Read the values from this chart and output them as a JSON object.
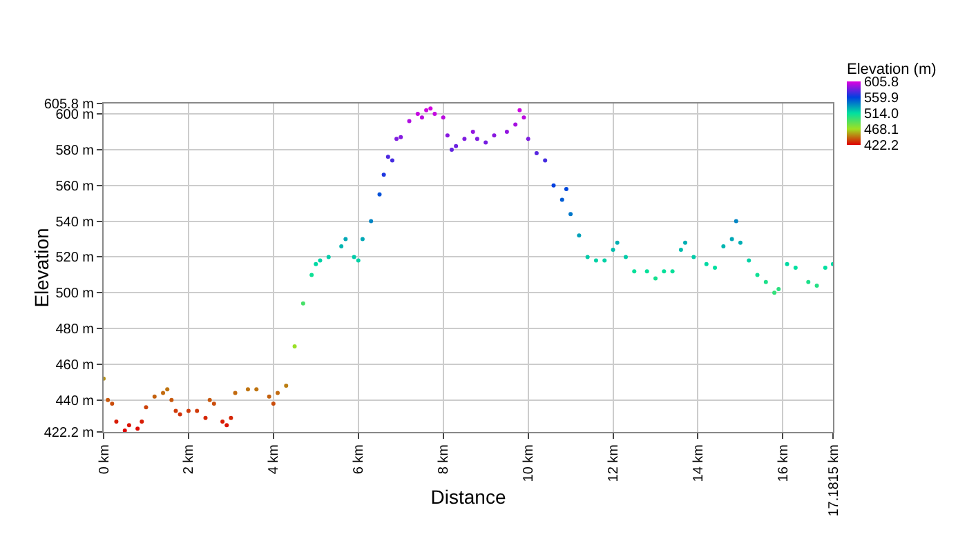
{
  "chart_data": {
    "type": "scatter",
    "xlabel": "Distance",
    "ylabel": "Elevation",
    "clabel": "Elevation (m)",
    "x": [
      0,
      0.1,
      0.2,
      0.3,
      0.5,
      0.6,
      0.8,
      0.9,
      1.0,
      1.2,
      1.4,
      1.5,
      1.6,
      1.7,
      1.8,
      2.0,
      2.2,
      2.4,
      2.5,
      2.6,
      2.8,
      2.9,
      3.0,
      3.1,
      3.4,
      3.6,
      3.9,
      4.0,
      4.1,
      4.3,
      4.5,
      4.7,
      4.9,
      5.0,
      5.1,
      5.3,
      5.6,
      5.7,
      5.9,
      6.0,
      6.1,
      6.3,
      6.5,
      6.6,
      6.7,
      6.8,
      6.9,
      7.0,
      7.2,
      7.4,
      7.5,
      7.6,
      7.7,
      7.8,
      8.0,
      8.1,
      8.2,
      8.3,
      8.5,
      8.7,
      8.8,
      9.0,
      9.2,
      9.5,
      9.7,
      9.8,
      9.9,
      10.0,
      10.2,
      10.4,
      10.6,
      10.8,
      10.9,
      11.0,
      11.2,
      11.4,
      11.6,
      11.8,
      12.0,
      12.1,
      12.3,
      12.5,
      12.8,
      13.0,
      13.2,
      13.4,
      13.6,
      13.7,
      13.9,
      14.2,
      14.4,
      14.6,
      14.8,
      14.9,
      15.0,
      15.2,
      15.4,
      15.6,
      15.8,
      15.9,
      16.1,
      16.3,
      16.6,
      16.8,
      17.0,
      17.18
    ],
    "values": [
      452,
      440,
      438,
      428,
      423,
      426,
      424,
      428,
      436,
      442,
      444,
      446,
      440,
      434,
      432,
      434,
      434,
      430,
      440,
      438,
      428,
      426,
      430,
      444,
      446,
      446,
      442,
      438,
      444,
      448,
      470,
      494,
      510,
      516,
      518,
      520,
      526,
      530,
      520,
      518,
      530,
      540,
      555,
      566,
      576,
      574,
      586,
      587,
      596,
      600,
      598,
      602,
      603,
      600,
      598,
      588,
      580,
      582,
      586,
      590,
      586,
      584,
      588,
      590,
      594,
      602,
      598,
      586,
      578,
      574,
      560,
      552,
      558,
      544,
      532,
      520,
      518,
      518,
      524,
      528,
      520,
      512,
      512,
      508,
      512,
      512,
      524,
      528,
      520,
      516,
      514,
      526,
      530,
      540,
      528,
      518,
      510,
      506,
      500,
      502,
      516,
      514,
      506,
      504,
      514,
      516
    ],
    "cvalues": [
      452,
      440,
      438,
      428,
      423,
      426,
      424,
      428,
      436,
      442,
      444,
      446,
      440,
      434,
      432,
      434,
      434,
      430,
      440,
      438,
      428,
      426,
      430,
      444,
      446,
      446,
      442,
      438,
      444,
      448,
      470,
      494,
      510,
      516,
      518,
      520,
      526,
      530,
      520,
      518,
      530,
      540,
      555,
      566,
      576,
      574,
      586,
      587,
      596,
      600,
      598,
      602,
      603,
      600,
      598,
      588,
      580,
      582,
      586,
      590,
      586,
      584,
      588,
      590,
      594,
      602,
      598,
      586,
      578,
      574,
      560,
      552,
      558,
      544,
      532,
      520,
      518,
      518,
      524,
      528,
      520,
      512,
      512,
      508,
      512,
      512,
      524,
      528,
      520,
      516,
      514,
      526,
      530,
      540,
      528,
      518,
      510,
      506,
      500,
      502,
      516,
      514,
      506,
      504,
      514,
      516
    ],
    "marker": "circle",
    "xlim": [
      0,
      17.1815
    ],
    "xticks": [
      {
        "value": 0,
        "label": "0 km"
      },
      {
        "value": 2,
        "label": "2 km"
      },
      {
        "value": 4,
        "label": "4 km"
      },
      {
        "value": 6,
        "label": "6 km"
      },
      {
        "value": 8,
        "label": "8 km"
      },
      {
        "value": 10,
        "label": "10 km"
      },
      {
        "value": 12,
        "label": "12 km"
      },
      {
        "value": 14,
        "label": "14 km"
      },
      {
        "value": 16,
        "label": "16 km"
      },
      {
        "value": 17.1815,
        "label": "17.1815 km"
      }
    ],
    "ylim": [
      422.2,
      605.8
    ],
    "yticks": [
      {
        "value": 422.2,
        "label": "422.2 m"
      },
      {
        "value": 440,
        "label": "440 m"
      },
      {
        "value": 460,
        "label": "460 m"
      },
      {
        "value": 480,
        "label": "480 m"
      },
      {
        "value": 500,
        "label": "500 m"
      },
      {
        "value": 520,
        "label": "520 m"
      },
      {
        "value": 540,
        "label": "540 m"
      },
      {
        "value": 560,
        "label": "560 m"
      },
      {
        "value": 580,
        "label": "580 m"
      },
      {
        "value": 600,
        "label": "600 m"
      },
      {
        "value": 605.8,
        "label": "605.8 m"
      }
    ],
    "clim": [
      422.2,
      605.8
    ],
    "cticks": [
      {
        "value": 605.8,
        "label": "605.8"
      },
      {
        "value": 559.9,
        "label": "559.9"
      },
      {
        "value": 514.0,
        "label": "514.0"
      },
      {
        "value": 468.1,
        "label": "468.1"
      },
      {
        "value": 422.2,
        "label": "422.2"
      }
    ],
    "grid": true
  }
}
